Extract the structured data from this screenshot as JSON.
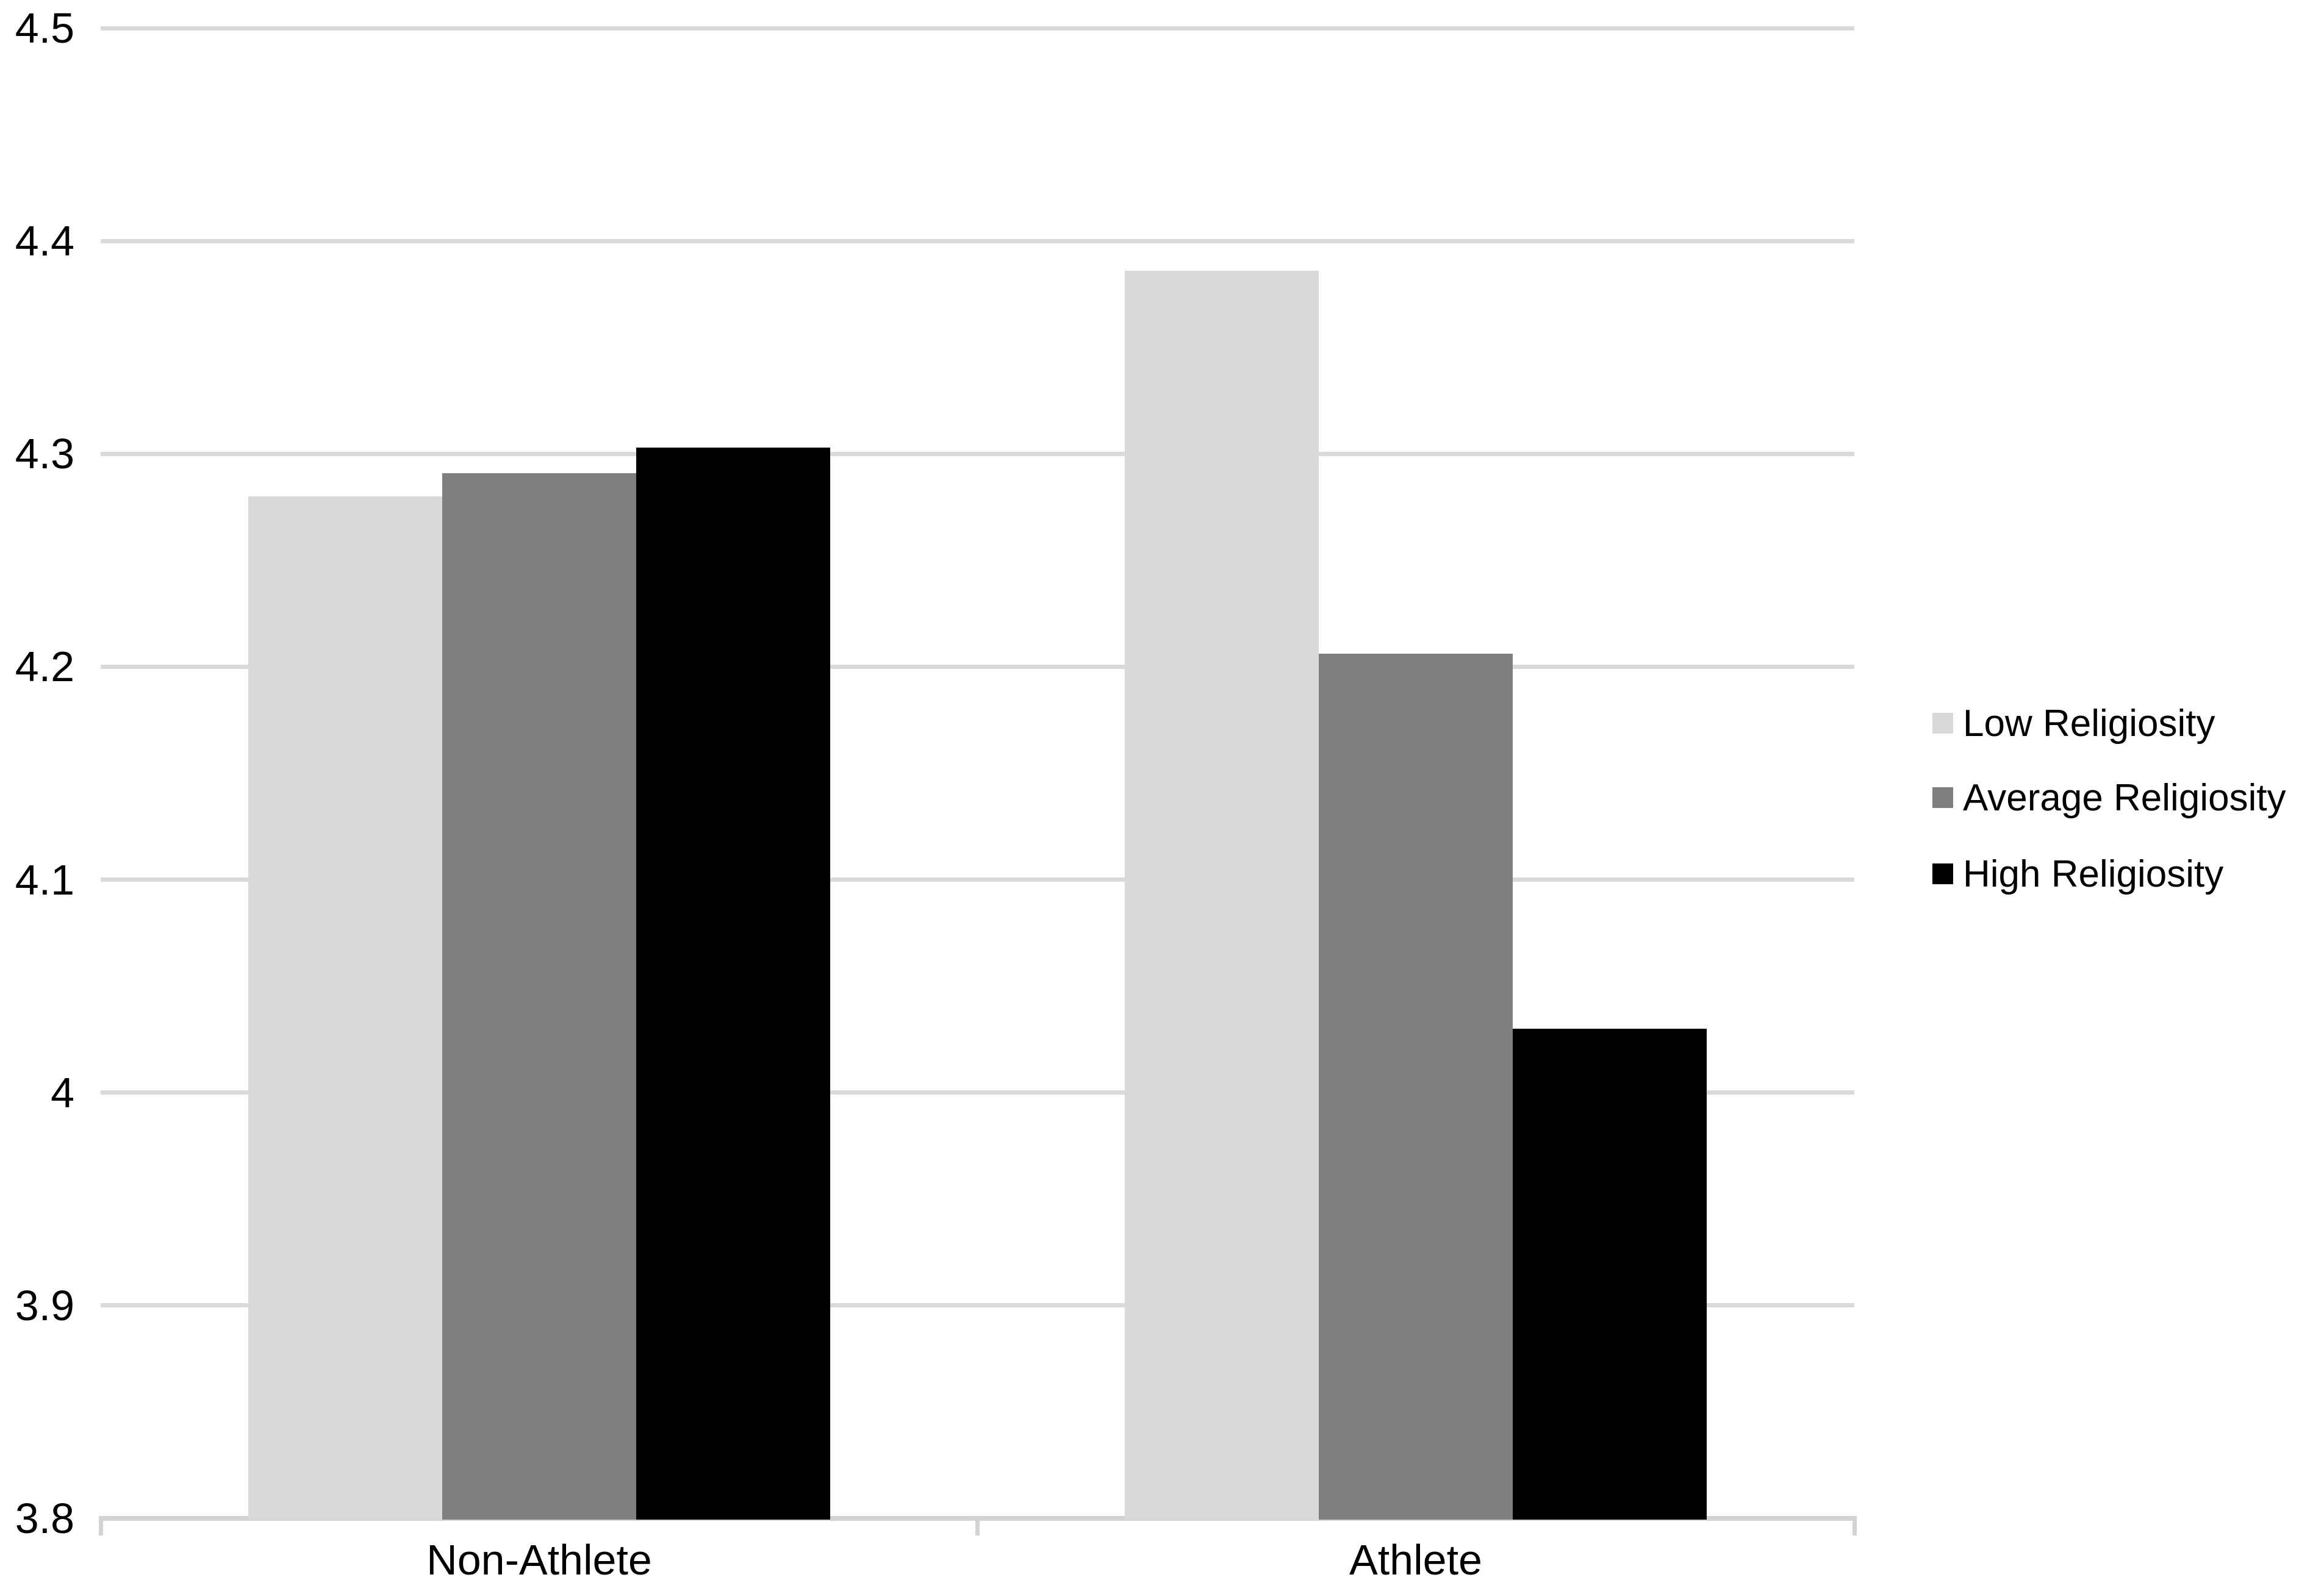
{
  "chart_data": {
    "type": "bar",
    "title": "",
    "xlabel": "",
    "ylabel": "",
    "categories": [
      "Non-Athlete",
      "Athlete"
    ],
    "series": [
      {
        "name": "Low Religiosity",
        "values": [
          4.28,
          4.386
        ],
        "color": "#d9d9d9"
      },
      {
        "name": "Average Religiosity",
        "values": [
          4.291,
          4.206
        ],
        "color": "#7f7f7f"
      },
      {
        "name": "High Religiosity",
        "values": [
          4.303,
          4.03
        ],
        "color": "#000000"
      }
    ],
    "ylim": [
      3.8,
      4.5
    ],
    "yticks": [
      {
        "value": 4.5,
        "label": "4.5"
      },
      {
        "value": 4.4,
        "label": "4.4"
      },
      {
        "value": 4.3,
        "label": "4.3"
      },
      {
        "value": 4.2,
        "label": "4.2"
      },
      {
        "value": 4.1,
        "label": "4.1"
      },
      {
        "value": 4.0,
        "label": "4"
      },
      {
        "value": 3.9,
        "label": "3.9"
      },
      {
        "value": 3.8,
        "label": "3.8"
      }
    ],
    "grid": true,
    "legend_position": "right",
    "colors": {
      "background": "#ffffff",
      "gridline": "#dadada",
      "axis": "#d3d3d3",
      "text": "#000000"
    }
  }
}
